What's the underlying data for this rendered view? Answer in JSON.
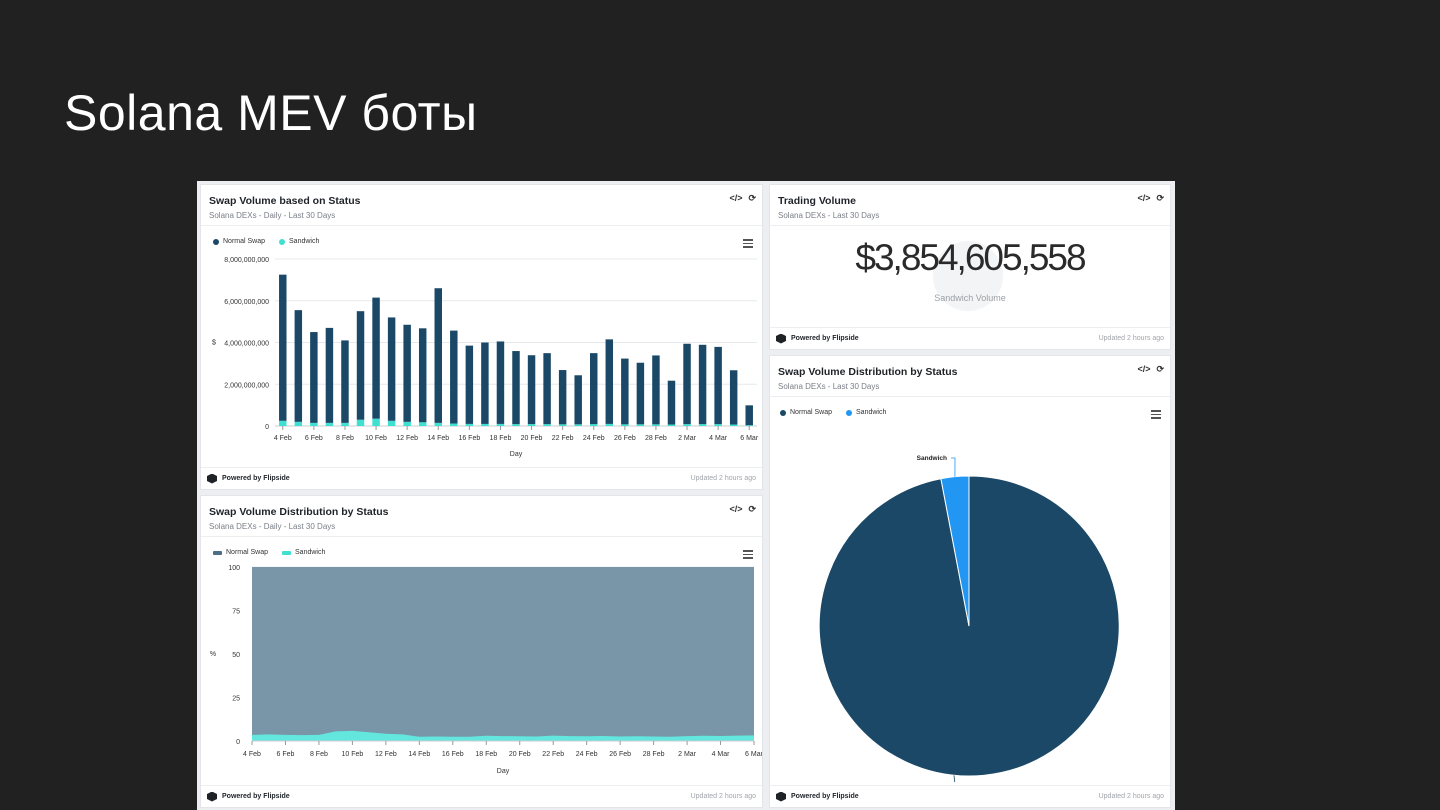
{
  "slide": {
    "title": "Solana MEV боты"
  },
  "common": {
    "powered_by": "Powered by Flipside",
    "updated": "Updated 2 hours ago",
    "embed_icon": "</>",
    "refresh_icon": "⟳"
  },
  "card_swap_volume": {
    "title": "Swap Volume based on Status",
    "subtitle": "Solana DEXs - Daily - Last 30 Days",
    "legend": [
      "Normal Swap",
      "Sandwich"
    ]
  },
  "card_trading_volume": {
    "title": "Trading Volume",
    "subtitle": "Solana DEXs - Last 30 Days",
    "value": "$3,854,605,558",
    "label": "Sandwich Volume"
  },
  "card_dist_daily": {
    "title": "Swap Volume Distribution by Status",
    "subtitle": "Solana DEXs - Daily - Last 30 Days",
    "legend": [
      "Normal Swap",
      "Sandwich"
    ]
  },
  "card_dist_pie": {
    "title": "Swap Volume Distribution by Status",
    "subtitle": "Solana DEXs - Last 30 Days",
    "legend": [
      "Normal Swap",
      "Sandwich"
    ]
  },
  "colors": {
    "normal": "#1b4866",
    "sandwich_bar": "#40e0d0",
    "area_normal": "#7896a8",
    "area_sandwich": "#63e6de",
    "pie_normal": "#1b4866",
    "pie_sandwich": "#2196f3"
  },
  "chart_data": [
    {
      "type": "bar",
      "stacked": true,
      "xlabel": "Day",
      "ylabel": "$",
      "ylim": [
        0,
        8000000000
      ],
      "yticks": [
        "0",
        "2,000,000,000",
        "4,000,000,000",
        "6,000,000,000",
        "8,000,000,000"
      ],
      "xticks": [
        "4 Feb",
        "6 Feb",
        "8 Feb",
        "10 Feb",
        "12 Feb",
        "14 Feb",
        "16 Feb",
        "18 Feb",
        "20 Feb",
        "22 Feb",
        "24 Feb",
        "26 Feb",
        "28 Feb",
        "2 Mar",
        "4 Mar",
        "6 Mar"
      ],
      "grid": true,
      "legend_position": "top-left",
      "series": [
        {
          "name": "Normal Swap",
          "values": [
            7000000000,
            5350000000,
            4350000000,
            4550000000,
            3950000000,
            5200000000,
            5800000000,
            4950000000,
            4650000000,
            4500000000,
            6450000000,
            4450000000,
            3750000000,
            3900000000,
            3950000000,
            3500000000,
            3300000000,
            3400000000,
            2600000000,
            2350000000,
            3400000000,
            4050000000,
            3150000000,
            2950000000,
            3300000000,
            2100000000,
            3850000000,
            3800000000,
            3700000000,
            2600000000,
            950000000
          ]
        },
        {
          "name": "Sandwich",
          "values": [
            250000000,
            200000000,
            150000000,
            150000000,
            150000000,
            300000000,
            350000000,
            250000000,
            200000000,
            180000000,
            150000000,
            120000000,
            100000000,
            100000000,
            100000000,
            90000000,
            90000000,
            90000000,
            80000000,
            80000000,
            90000000,
            100000000,
            80000000,
            80000000,
            80000000,
            70000000,
            90000000,
            90000000,
            90000000,
            70000000,
            40000000
          ]
        }
      ]
    },
    {
      "type": "area",
      "stacked": true,
      "percent": true,
      "xlabel": "Day",
      "ylabel": "%",
      "ylim": [
        0,
        100
      ],
      "yticks": [
        "0",
        "25",
        "50",
        "75",
        "100"
      ],
      "xticks": [
        "4 Feb",
        "6 Feb",
        "8 Feb",
        "10 Feb",
        "12 Feb",
        "14 Feb",
        "16 Feb",
        "18 Feb",
        "20 Feb",
        "22 Feb",
        "24 Feb",
        "26 Feb",
        "28 Feb",
        "2 Mar",
        "4 Mar",
        "6 Mar"
      ],
      "grid": true,
      "legend_position": "top-left",
      "series": [
        {
          "name": "Normal Swap",
          "values": [
            96.5,
            96.2,
            96.5,
            96.6,
            96.5,
            94.5,
            94.2,
            95.0,
            95.8,
            96.2,
            97.5,
            97.4,
            97.5,
            97.6,
            97.0,
            97.2,
            97.3,
            97.4,
            96.9,
            97.2,
            97.3,
            97.1,
            97.4,
            97.3,
            97.4,
            97.6,
            97.2,
            97.0,
            97.1,
            96.9,
            96.8
          ]
        },
        {
          "name": "Sandwich",
          "values": [
            3.5,
            3.8,
            3.5,
            3.4,
            3.5,
            5.5,
            5.8,
            5.0,
            4.2,
            3.8,
            2.5,
            2.6,
            2.5,
            2.4,
            3.0,
            2.8,
            2.7,
            2.6,
            3.1,
            2.8,
            2.7,
            2.9,
            2.6,
            2.7,
            2.6,
            2.4,
            2.8,
            3.0,
            2.9,
            3.1,
            3.2
          ]
        }
      ]
    },
    {
      "type": "pie",
      "labels": [
        "Normal Swap",
        "Sandwich"
      ],
      "values": [
        97,
        3
      ],
      "legend_position": "top-left"
    }
  ]
}
